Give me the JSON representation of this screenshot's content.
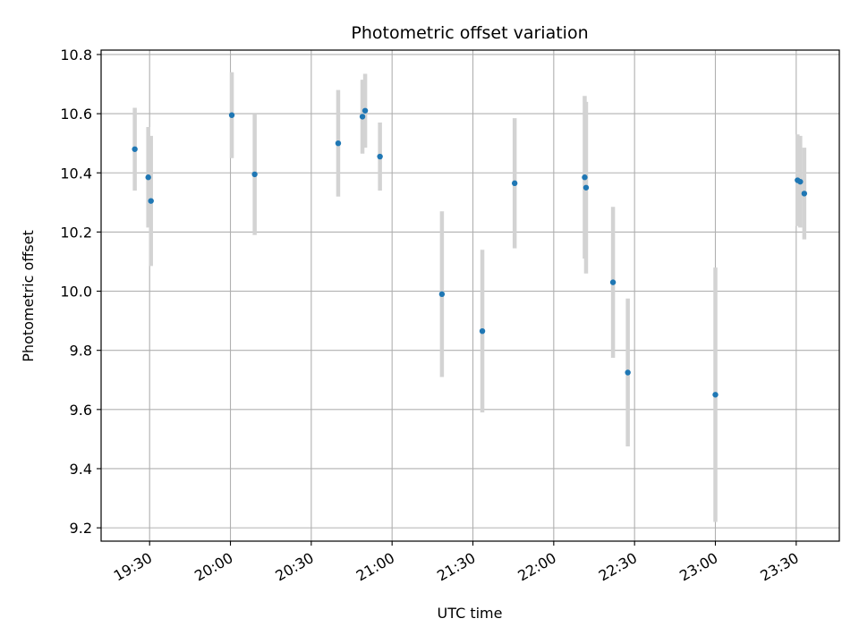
{
  "chart_data": {
    "type": "scatter",
    "title": "Photometric offset variation",
    "xlabel": "UTC time",
    "ylabel": "Photometric offset",
    "xlim_minutes": [
      1152,
      1426
    ],
    "ylim": [
      9.155,
      10.815
    ],
    "grid": true,
    "x_ticks": [
      {
        "minutes": 1170,
        "label": "19:30"
      },
      {
        "minutes": 1200,
        "label": "20:00"
      },
      {
        "minutes": 1230,
        "label": "20:30"
      },
      {
        "minutes": 1260,
        "label": "21:00"
      },
      {
        "minutes": 1290,
        "label": "21:30"
      },
      {
        "minutes": 1320,
        "label": "22:00"
      },
      {
        "minutes": 1350,
        "label": "22:30"
      },
      {
        "minutes": 1380,
        "label": "23:00"
      },
      {
        "minutes": 1410,
        "label": "23:30"
      }
    ],
    "y_ticks": [
      {
        "value": 9.2,
        "label": "9.2"
      },
      {
        "value": 9.4,
        "label": "9.4"
      },
      {
        "value": 9.6,
        "label": "9.6"
      },
      {
        "value": 9.8,
        "label": "9.8"
      },
      {
        "value": 10.0,
        "label": "10.0"
      },
      {
        "value": 10.2,
        "label": "10.2"
      },
      {
        "value": 10.4,
        "label": "10.4"
      },
      {
        "value": 10.6,
        "label": "10.6"
      },
      {
        "value": 10.8,
        "label": "10.8"
      }
    ],
    "point_color": "#1f77b4",
    "errorbar_color": "#d3d3d3",
    "points": [
      {
        "t": 1164.5,
        "y": 10.48,
        "err": 0.14
      },
      {
        "t": 1169.5,
        "y": 10.385,
        "err": 0.17
      },
      {
        "t": 1170.5,
        "y": 10.305,
        "err": 0.22
      },
      {
        "t": 1200.5,
        "y": 10.595,
        "err": 0.145
      },
      {
        "t": 1209.0,
        "y": 10.395,
        "err": 0.205
      },
      {
        "t": 1240.0,
        "y": 10.5,
        "err": 0.18
      },
      {
        "t": 1249.0,
        "y": 10.59,
        "err": 0.125
      },
      {
        "t": 1250.0,
        "y": 10.61,
        "err": 0.125
      },
      {
        "t": 1255.5,
        "y": 10.455,
        "err": 0.115
      },
      {
        "t": 1278.5,
        "y": 9.99,
        "err": 0.28
      },
      {
        "t": 1293.5,
        "y": 9.865,
        "err": 0.275
      },
      {
        "t": 1305.5,
        "y": 10.365,
        "err": 0.22
      },
      {
        "t": 1331.5,
        "y": 10.385,
        "err": 0.275
      },
      {
        "t": 1332.0,
        "y": 10.35,
        "err": 0.29
      },
      {
        "t": 1342.0,
        "y": 10.03,
        "err": 0.255
      },
      {
        "t": 1347.5,
        "y": 9.725,
        "err": 0.25
      },
      {
        "t": 1380.0,
        "y": 9.65,
        "err": 0.43
      },
      {
        "t": 1410.5,
        "y": 10.375,
        "err": 0.155
      },
      {
        "t": 1411.5,
        "y": 10.37,
        "err": 0.155
      },
      {
        "t": 1413.0,
        "y": 10.33,
        "err": 0.155
      }
    ]
  }
}
